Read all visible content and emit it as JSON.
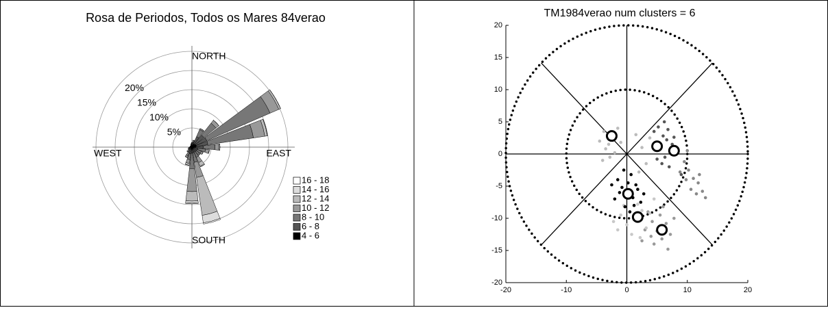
{
  "chart_data": [
    {
      "type": "rose",
      "title": "Rosa de Periodos, Todos os Mares 84verao",
      "direction_labels": [
        "NORTH",
        "EAST",
        "SOUTH",
        "WEST"
      ],
      "x": [
        0,
        15,
        30,
        45,
        60,
        75,
        90,
        105,
        120,
        135,
        150,
        165,
        180,
        195,
        210,
        225,
        240,
        255,
        270,
        285,
        300,
        315,
        330,
        345
      ],
      "rlim": [
        0,
        25
      ],
      "rticks": [
        {
          "value": 5,
          "label": "5%"
        },
        {
          "value": 10,
          "label": "10%"
        },
        {
          "value": 15,
          "label": "15%"
        },
        {
          "value": 20,
          "label": "20%"
        }
      ],
      "series": [
        {
          "name": "4 - 6",
          "color": "#000000",
          "values": [
            0.5,
            0.5,
            1,
            1,
            1.2,
            1.2,
            1,
            0.6,
            0.5,
            0.5,
            0.4,
            0.5,
            0.6,
            0.6,
            0.5,
            0.4,
            0.3,
            0.3,
            0.3,
            0.3,
            0.3,
            0.3,
            0.3,
            0.4
          ]
        },
        {
          "name": "6 - 8",
          "color": "#555555",
          "values": [
            0.5,
            0.8,
            2,
            3,
            3,
            3,
            2,
            1,
            1,
            1,
            1,
            1,
            1,
            1.2,
            1,
            0.6,
            0.5,
            0.4,
            0.3,
            0.2,
            0.2,
            0.2,
            0.3,
            0.3
          ]
        },
        {
          "name": "8 - 10",
          "color": "#777777",
          "values": [
            0.2,
            0.5,
            2,
            4,
            18,
            12,
            3,
            2,
            1.2,
            1,
            1.5,
            2.5,
            4,
            1.5,
            1,
            0.5,
            0.3,
            0.2,
            0,
            0,
            0,
            0,
            0,
            0.2
          ]
        },
        {
          "name": "10 - 12",
          "color": "#999999",
          "values": [
            0,
            0,
            0.3,
            1,
            2.5,
            3,
            1,
            1,
            0.5,
            0.3,
            1.5,
            4,
            6,
            1,
            0.5,
            0.2,
            0,
            0,
            0,
            0,
            0,
            0,
            0,
            0
          ]
        },
        {
          "name": "12 - 14",
          "color": "#bbbbbb",
          "values": [
            0,
            0,
            0,
            0,
            0.5,
            0.7,
            0.3,
            0,
            0,
            0,
            1,
            10,
            2.5,
            0.5,
            0,
            0,
            0,
            0,
            0,
            0,
            0,
            0,
            0,
            0
          ]
        },
        {
          "name": "14 - 16",
          "color": "#dddddd",
          "values": [
            0,
            0,
            0,
            0,
            0,
            0,
            0,
            0,
            0,
            0,
            0.2,
            2,
            0.5,
            0,
            0,
            0,
            0,
            0,
            0,
            0,
            0,
            0,
            0,
            0
          ]
        },
        {
          "name": "16 - 18",
          "color": "#ffffff",
          "values": [
            0,
            0,
            0,
            0,
            0,
            0,
            0,
            0,
            0,
            0,
            0,
            0.3,
            0.2,
            0,
            0,
            0,
            0,
            0,
            0,
            0,
            0,
            0,
            0,
            0
          ]
        }
      ]
    },
    {
      "type": "scatter",
      "title": "TM1984verao num clusters = 6",
      "xlim": [
        -20,
        20
      ],
      "ylim": [
        -20,
        20
      ],
      "xticks": [
        -20,
        -10,
        0,
        10,
        20
      ],
      "yticks": [
        -20,
        -15,
        -10,
        -5,
        0,
        5,
        10,
        15,
        20
      ],
      "rings": [
        10,
        20
      ],
      "series": [
        {
          "color": "#bbbbbb",
          "x": [
            -4.5,
            -3.8,
            -3.0,
            -2.2,
            -1.5,
            -3.5,
            -2.8,
            -1.0,
            -4.0,
            -2.0,
            1.5,
            2.5,
            3.2,
            2.0,
            3.8
          ],
          "y": [
            2.0,
            3.5,
            1.5,
            2.8,
            4.0,
            0.8,
            -0.5,
            1.8,
            -1.0,
            0.2,
            3.0,
            1.0,
            -1.5,
            -2.8,
            2.5
          ]
        },
        {
          "color": "#555555",
          "x": [
            4.5,
            5.2,
            6.0,
            6.8,
            7.5,
            5.5,
            6.3,
            4.8,
            7.0,
            8.2,
            5.8,
            6.6,
            9.0,
            5.0,
            7.8,
            6.2
          ],
          "y": [
            3.5,
            4.2,
            2.8,
            3.8,
            1.5,
            0.8,
            -0.5,
            1.8,
            -2.0,
            0.2,
            -1.5,
            2.2,
            -3.2,
            -0.8,
            2.6,
            5.0
          ]
        },
        {
          "color": "#888888",
          "x": [
            9.5,
            10.2,
            11.0,
            11.8,
            12.5,
            13.0,
            9.8,
            10.6,
            11.5,
            8.8,
            12.0,
            10.0
          ],
          "y": [
            -1.2,
            -2.5,
            -3.8,
            -4.5,
            -5.8,
            -6.8,
            -4.0,
            -5.5,
            -6.2,
            -2.8,
            -3.2,
            0.5
          ]
        },
        {
          "color": "#999999",
          "x": [
            3.5,
            4.2,
            5.0,
            5.8,
            6.5,
            7.2,
            4.5,
            5.5,
            6.8,
            3.0,
            7.8,
            4.0,
            6.0,
            2.5
          ],
          "y": [
            -9.0,
            -10.5,
            -12.0,
            -13.2,
            -10.8,
            -12.5,
            -14.0,
            -9.5,
            -14.8,
            -11.8,
            -10.0,
            -12.8,
            -8.2,
            -13.5
          ]
        },
        {
          "color": "#c8c8c8",
          "x": [
            -1.0,
            0.0,
            1.2,
            2.5,
            3.2,
            -2.2,
            0.8,
            1.8,
            3.8,
            -0.5,
            2.2,
            -1.5,
            4.5,
            0.5
          ],
          "y": [
            -9.5,
            -11.0,
            -10.2,
            -8.8,
            -11.5,
            -10.5,
            -12.5,
            -7.8,
            -9.2,
            -8.0,
            -13.0,
            -11.8,
            -7.0,
            -9.0
          ]
        },
        {
          "color": "#000000",
          "x": [
            -1.5,
            -0.8,
            0.2,
            1.0,
            1.8,
            -2.0,
            -0.3,
            0.7,
            2.3,
            -1.2,
            0.5,
            1.5,
            -0.5,
            2.8,
            -2.5,
            1.2
          ],
          "y": [
            -4.0,
            -5.2,
            -4.5,
            -6.8,
            -5.5,
            -7.0,
            -8.2,
            -3.2,
            -7.5,
            -6.0,
            -9.0,
            -4.8,
            -2.5,
            -6.2,
            -4.8,
            -8.0
          ]
        }
      ],
      "centroids": {
        "x": [
          -2.5,
          5.0,
          7.8,
          0.2,
          1.8,
          5.8
        ],
        "y": [
          2.8,
          1.2,
          0.5,
          -6.2,
          -9.8,
          -11.8
        ]
      }
    }
  ]
}
